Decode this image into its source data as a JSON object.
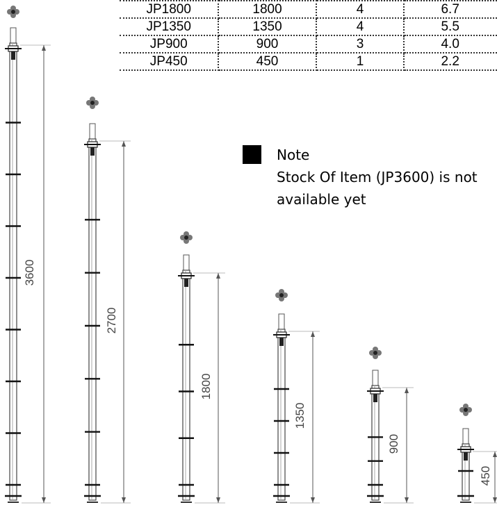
{
  "table": {
    "rows": [
      [
        "JP1800",
        "1800",
        "4",
        "6.7"
      ],
      [
        "JP1350",
        "1350",
        "4",
        "5.5"
      ],
      [
        "JP900",
        "900",
        "3",
        "4.0"
      ],
      [
        "JP450",
        "450",
        "1",
        "2.2"
      ]
    ]
  },
  "note": {
    "title": "Note",
    "text": "Stock Of Item (JP3600) is not available yet"
  },
  "props": [
    {
      "label": "3600",
      "collars": 8
    },
    {
      "label": "2700",
      "collars": 6
    },
    {
      "label": "1800",
      "collars": 4
    },
    {
      "label": "1350",
      "collars": 4
    },
    {
      "label": "900",
      "collars": 3
    },
    {
      "label": "450",
      "collars": 1
    }
  ]
}
